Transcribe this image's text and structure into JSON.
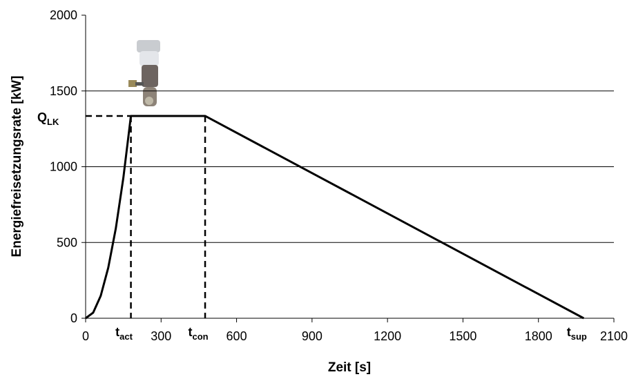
{
  "chart_data": {
    "type": "line",
    "x_label": "Zeit [s]",
    "y_label": "Energiefreisetzungsrate [kW]",
    "x": [
      0,
      30,
      60,
      90,
      120,
      150,
      180,
      475,
      1980
    ],
    "series": [
      {
        "color": "#000000",
        "values": [
          0,
          37,
          148,
          334,
          593,
          927,
          1335,
          1335,
          0
        ]
      }
    ],
    "xlim": [
      0,
      2100
    ],
    "xticks": [
      0,
      300,
      600,
      900,
      1200,
      1500,
      1800,
      2100
    ],
    "ylim": [
      0,
      2000
    ],
    "yticks": [
      0,
      500,
      1000,
      1500,
      2000
    ],
    "grid": true,
    "annotations": [
      {
        "text": "Q",
        "sub": "LK",
        "y": 1335
      },
      {
        "text": "t",
        "sub": "act",
        "x": 180
      },
      {
        "text": "t",
        "sub": "con",
        "x": 475
      },
      {
        "text": "t",
        "sub": "sup",
        "x": 1980
      }
    ]
  }
}
